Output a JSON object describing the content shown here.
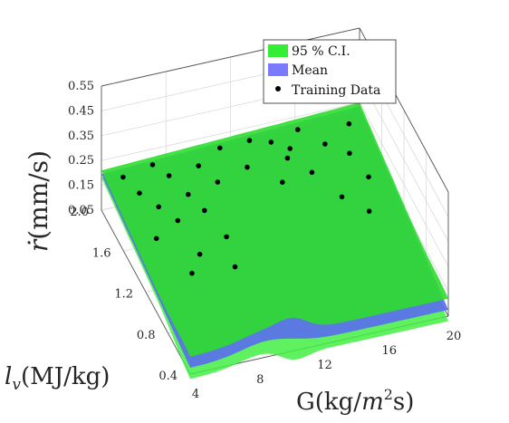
{
  "chart_data": {
    "type": "surface3d",
    "ylabel_text": "G(kg/",
    "ylabel_math": "m",
    "ylabel_exp": "2",
    "ylabel_tail": "s)",
    "xlabel_math": "l",
    "xlabel_sub": "v",
    "xlabel_tail": "(MJ/kg)",
    "zlabel_math": "ṙ",
    "zlabel_tail": "(mm/s)",
    "g_ticks": [
      "4",
      "8",
      "12",
      "16",
      "20"
    ],
    "g_range": [
      4,
      20
    ],
    "lv_ticks": [
      "0.4",
      "0.8",
      "1.2",
      "1.6",
      "2.0"
    ],
    "lv_range": [
      0.4,
      2.0
    ],
    "z_ticks": [
      "0.05",
      "0.15",
      "0.25",
      "0.35",
      "0.45",
      "0.55"
    ],
    "z_range": [
      0.05,
      0.55
    ],
    "legend": [
      {
        "label": "95 % C.I.",
        "color": "#33ee33"
      },
      {
        "label": "Mean",
        "color": "#7a7aff"
      },
      {
        "label": "Training Data",
        "color": "#000000"
      }
    ],
    "grid": true,
    "legend_position": "top-right",
    "training_data": [
      {
        "g": 5.0,
        "lv": 1.9,
        "r": 0.21
      },
      {
        "g": 5.5,
        "lv": 1.75,
        "r": 0.2
      },
      {
        "g": 6.0,
        "lv": 1.55,
        "r": 0.22
      },
      {
        "g": 6.5,
        "lv": 1.35,
        "r": 0.24
      },
      {
        "g": 5.0,
        "lv": 1.3,
        "r": 0.21
      },
      {
        "g": 7.0,
        "lv": 1.95,
        "r": 0.21
      },
      {
        "g": 7.5,
        "lv": 1.8,
        "r": 0.22
      },
      {
        "g": 8.0,
        "lv": 1.6,
        "r": 0.22
      },
      {
        "g": 8.5,
        "lv": 1.45,
        "r": 0.21
      },
      {
        "g": 9.0,
        "lv": 1.2,
        "r": 0.2
      },
      {
        "g": 7.0,
        "lv": 1.1,
        "r": 0.2
      },
      {
        "g": 6.0,
        "lv": 0.95,
        "r": 0.2
      },
      {
        "g": 9.5,
        "lv": 1.85,
        "r": 0.21
      },
      {
        "g": 10.0,
        "lv": 1.65,
        "r": 0.22
      },
      {
        "g": 8.5,
        "lv": 0.9,
        "r": 0.21
      },
      {
        "g": 11.0,
        "lv": 1.9,
        "r": 0.24
      },
      {
        "g": 12.0,
        "lv": 1.7,
        "r": 0.23
      },
      {
        "g": 13.0,
        "lv": 1.95,
        "r": 0.22
      },
      {
        "g": 14.0,
        "lv": 1.85,
        "r": 0.24
      },
      {
        "g": 14.5,
        "lv": 1.7,
        "r": 0.23
      },
      {
        "g": 15.0,
        "lv": 1.8,
        "r": 0.22
      },
      {
        "g": 16.0,
        "lv": 1.95,
        "r": 0.22
      },
      {
        "g": 15.5,
        "lv": 1.55,
        "r": 0.22
      },
      {
        "g": 17.0,
        "lv": 1.75,
        "r": 0.23
      },
      {
        "g": 16.5,
        "lv": 1.3,
        "r": 0.21
      },
      {
        "g": 18.0,
        "lv": 1.6,
        "r": 0.24
      },
      {
        "g": 19.0,
        "lv": 1.9,
        "r": 0.22
      },
      {
        "g": 18.5,
        "lv": 1.4,
        "r": 0.22
      },
      {
        "g": 17.5,
        "lv": 1.1,
        "r": 0.22
      },
      {
        "g": 13.5,
        "lv": 1.5,
        "r": 0.23
      }
    ]
  }
}
